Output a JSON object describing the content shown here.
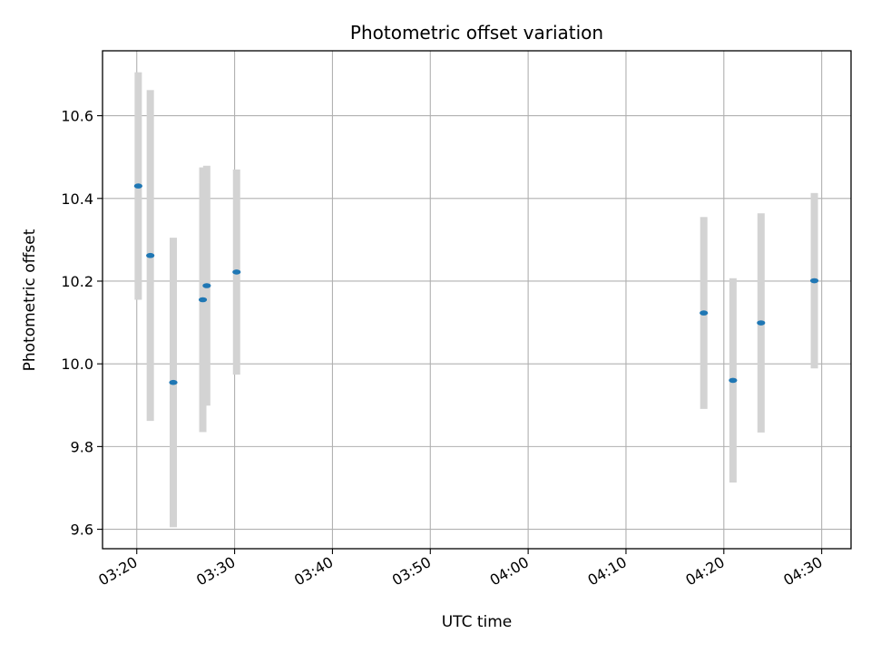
{
  "chart_data": {
    "type": "scatter",
    "title": "Photometric offset variation",
    "xlabel": "UTC time",
    "ylabel": "Photometric offset",
    "x_tick_labels": [
      "03:20",
      "03:30",
      "03:40",
      "03:50",
      "04:00",
      "04:10",
      "04:20",
      "04:30"
    ],
    "y_tick_labels": [
      "9.6",
      "9.8",
      "10.0",
      "10.2",
      "10.4",
      "10.6"
    ],
    "xlim": [
      "03:16:30",
      "04:33:00"
    ],
    "ylim": [
      9.553,
      10.757
    ],
    "grid": true,
    "error_bar_color": "#d3d3d3",
    "marker_color": "#1f77b4",
    "points": [
      {
        "x": "03:20:09",
        "y": 10.43,
        "yerr": 0.275
      },
      {
        "x": "03:21:23",
        "y": 10.262,
        "yerr": 0.4
      },
      {
        "x": "03:23:44",
        "y": 9.955,
        "yerr": 0.35
      },
      {
        "x": "03:26:45",
        "y": 10.155,
        "yerr": 0.32
      },
      {
        "x": "03:27:09",
        "y": 10.189,
        "yerr": 0.29
      },
      {
        "x": "03:30:12",
        "y": 10.222,
        "yerr": 0.248
      },
      {
        "x": "04:17:57",
        "y": 10.123,
        "yerr": 0.232
      },
      {
        "x": "04:20:56",
        "y": 9.96,
        "yerr": 0.247
      },
      {
        "x": "04:23:48",
        "y": 10.099,
        "yerr": 0.265
      },
      {
        "x": "04:29:15",
        "y": 10.201,
        "yerr": 0.212
      }
    ]
  }
}
